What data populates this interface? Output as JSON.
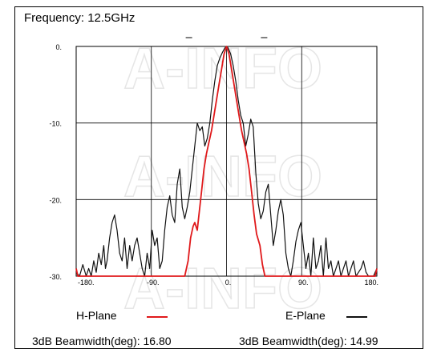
{
  "header": {
    "frequency_label": "Frequency: 12.5GHz"
  },
  "watermark": "A-INFO",
  "legend": {
    "h_plane": "H-Plane",
    "e_plane": "E-Plane",
    "h_color": "#e0191b",
    "e_color": "#111111"
  },
  "beamwidth": {
    "h_text": "3dB Beamwidth(deg): 16.80",
    "e_text": "3dB Beamwidth(deg): 14.99"
  },
  "chart_data": {
    "type": "line",
    "title": "Frequency: 12.5GHz",
    "xlim": [
      -180,
      180
    ],
    "ylim": [
      -30,
      0
    ],
    "x_ticks": [
      -180,
      -90,
      0,
      90,
      180
    ],
    "x_tick_labels": [
      "-180.",
      "-90.",
      "0.",
      "90.",
      "180."
    ],
    "y_ticks": [
      0,
      -10,
      -20,
      -30
    ],
    "y_tick_labels": [
      "0.",
      "-10.",
      "-20.",
      "-30."
    ],
    "grid": true,
    "series": [
      {
        "name": "H-Plane",
        "color": "#e0191b",
        "x": [
          -180,
          -178,
          -176,
          -176,
          -50,
          -46,
          -43,
          -40,
          -38,
          -35,
          -33,
          -30,
          -27,
          -24,
          -21,
          -18,
          -15,
          -12,
          -9,
          -6,
          -3,
          0,
          3,
          6,
          9,
          12,
          15,
          18,
          21,
          24,
          27,
          30,
          33,
          36,
          40,
          43,
          46,
          50,
          176,
          176,
          178,
          180
        ],
        "y": [
          -29,
          -30,
          -30,
          -30,
          -30,
          -28,
          -25,
          -23.5,
          -23,
          -24,
          -22,
          -19,
          -16,
          -14,
          -12.5,
          -11,
          -9,
          -7,
          -5,
          -3,
          -1,
          0,
          -1,
          -3,
          -5,
          -7,
          -9,
          -11,
          -12.5,
          -14,
          -16,
          -19,
          -22,
          -24.5,
          -26,
          -28.5,
          -30,
          -30,
          -30,
          -30,
          -30,
          -29
        ]
      },
      {
        "name": "E-Plane",
        "color": "#111111",
        "x": [
          -180,
          -176,
          -172,
          -168,
          -165,
          -162,
          -159,
          -156,
          -153,
          -150,
          -147,
          -145,
          -143,
          -140,
          -137,
          -134,
          -131,
          -128,
          -125,
          -122,
          -119,
          -116,
          -113,
          -110,
          -107,
          -104,
          -101,
          -98,
          -95,
          -92,
          -89,
          -86,
          -83,
          -80,
          -77,
          -74,
          -71,
          -68,
          -65,
          -62,
          -59,
          -56,
          -53,
          -50,
          -47,
          -44,
          -41,
          -38,
          -35,
          -32,
          -29,
          -26,
          -23,
          -20,
          -17,
          -14,
          -11,
          -8,
          -5,
          -2,
          0,
          2,
          5,
          8,
          11,
          14,
          17,
          20,
          23,
          26,
          29,
          32,
          35,
          38,
          41,
          44,
          47,
          50,
          53,
          56,
          59,
          62,
          65,
          68,
          71,
          74,
          77,
          80,
          83,
          86,
          89,
          92,
          95,
          98,
          101,
          104,
          107,
          110,
          113,
          116,
          119,
          122,
          125,
          128,
          131,
          134,
          137,
          140,
          143,
          146,
          149,
          152,
          155,
          158,
          161,
          164,
          167,
          170,
          173,
          176,
          180
        ],
        "y": [
          -29.5,
          -30,
          -28.5,
          -30,
          -29,
          -30,
          -28,
          -29.5,
          -27,
          -28.5,
          -26,
          -29,
          -28,
          -25,
          -23,
          -22,
          -24,
          -27,
          -28,
          -25,
          -29,
          -26,
          -28,
          -26,
          -25,
          -27,
          -29,
          -30,
          -27,
          -29,
          -24,
          -26,
          -25,
          -29,
          -28,
          -24,
          -21,
          -19.5,
          -22,
          -23,
          -18,
          -16,
          -21,
          -22.5,
          -21,
          -19,
          -16,
          -13,
          -10,
          -11,
          -10.5,
          -13,
          -12,
          -10,
          -7,
          -4.5,
          -2.5,
          -1.5,
          -0.8,
          -0.2,
          0,
          -0.2,
          -1,
          -2.5,
          -4.5,
          -7,
          -9,
          -10,
          -13,
          -11.5,
          -9.5,
          -10.5,
          -16.5,
          -20.5,
          -22.5,
          -21.5,
          -19,
          -18,
          -22,
          -26,
          -24,
          -21.5,
          -20,
          -22,
          -27,
          -29,
          -30,
          -28,
          -25.5,
          -24,
          -23,
          -26,
          -29,
          -27,
          -30,
          -25,
          -29,
          -28,
          -26,
          -30,
          -25,
          -29,
          -28,
          -30,
          -29,
          -28,
          -30,
          -29,
          -28,
          -30,
          -29,
          -28,
          -30,
          -29.5,
          -29,
          -28,
          -29.5,
          -30,
          -30,
          -30,
          -29
        ]
      }
    ]
  }
}
